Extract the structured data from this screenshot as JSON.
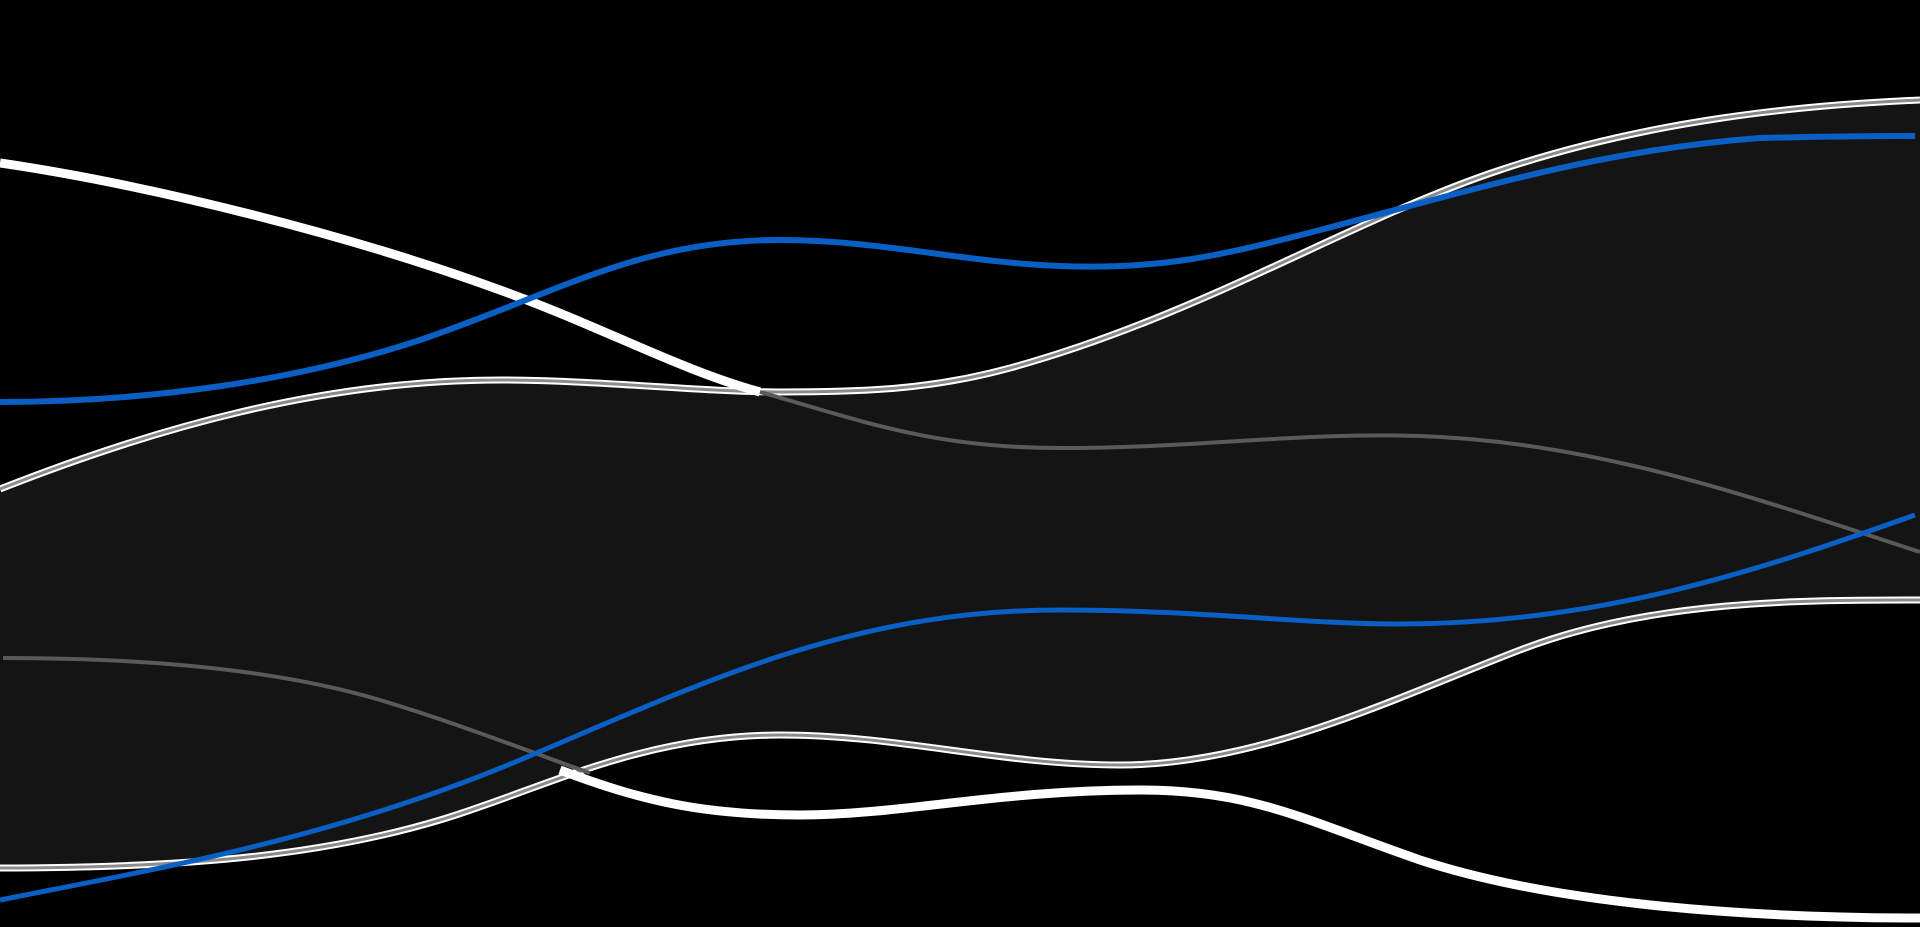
{
  "scene": {
    "description_free": true,
    "colors": {
      "background": "#000000",
      "band_fill": "#141414",
      "band_edge": "#8c8c8c",
      "white_trail": "#ffffff",
      "grey_line": "#5a5a5a",
      "blue_line": "#0a5fc4"
    }
  }
}
